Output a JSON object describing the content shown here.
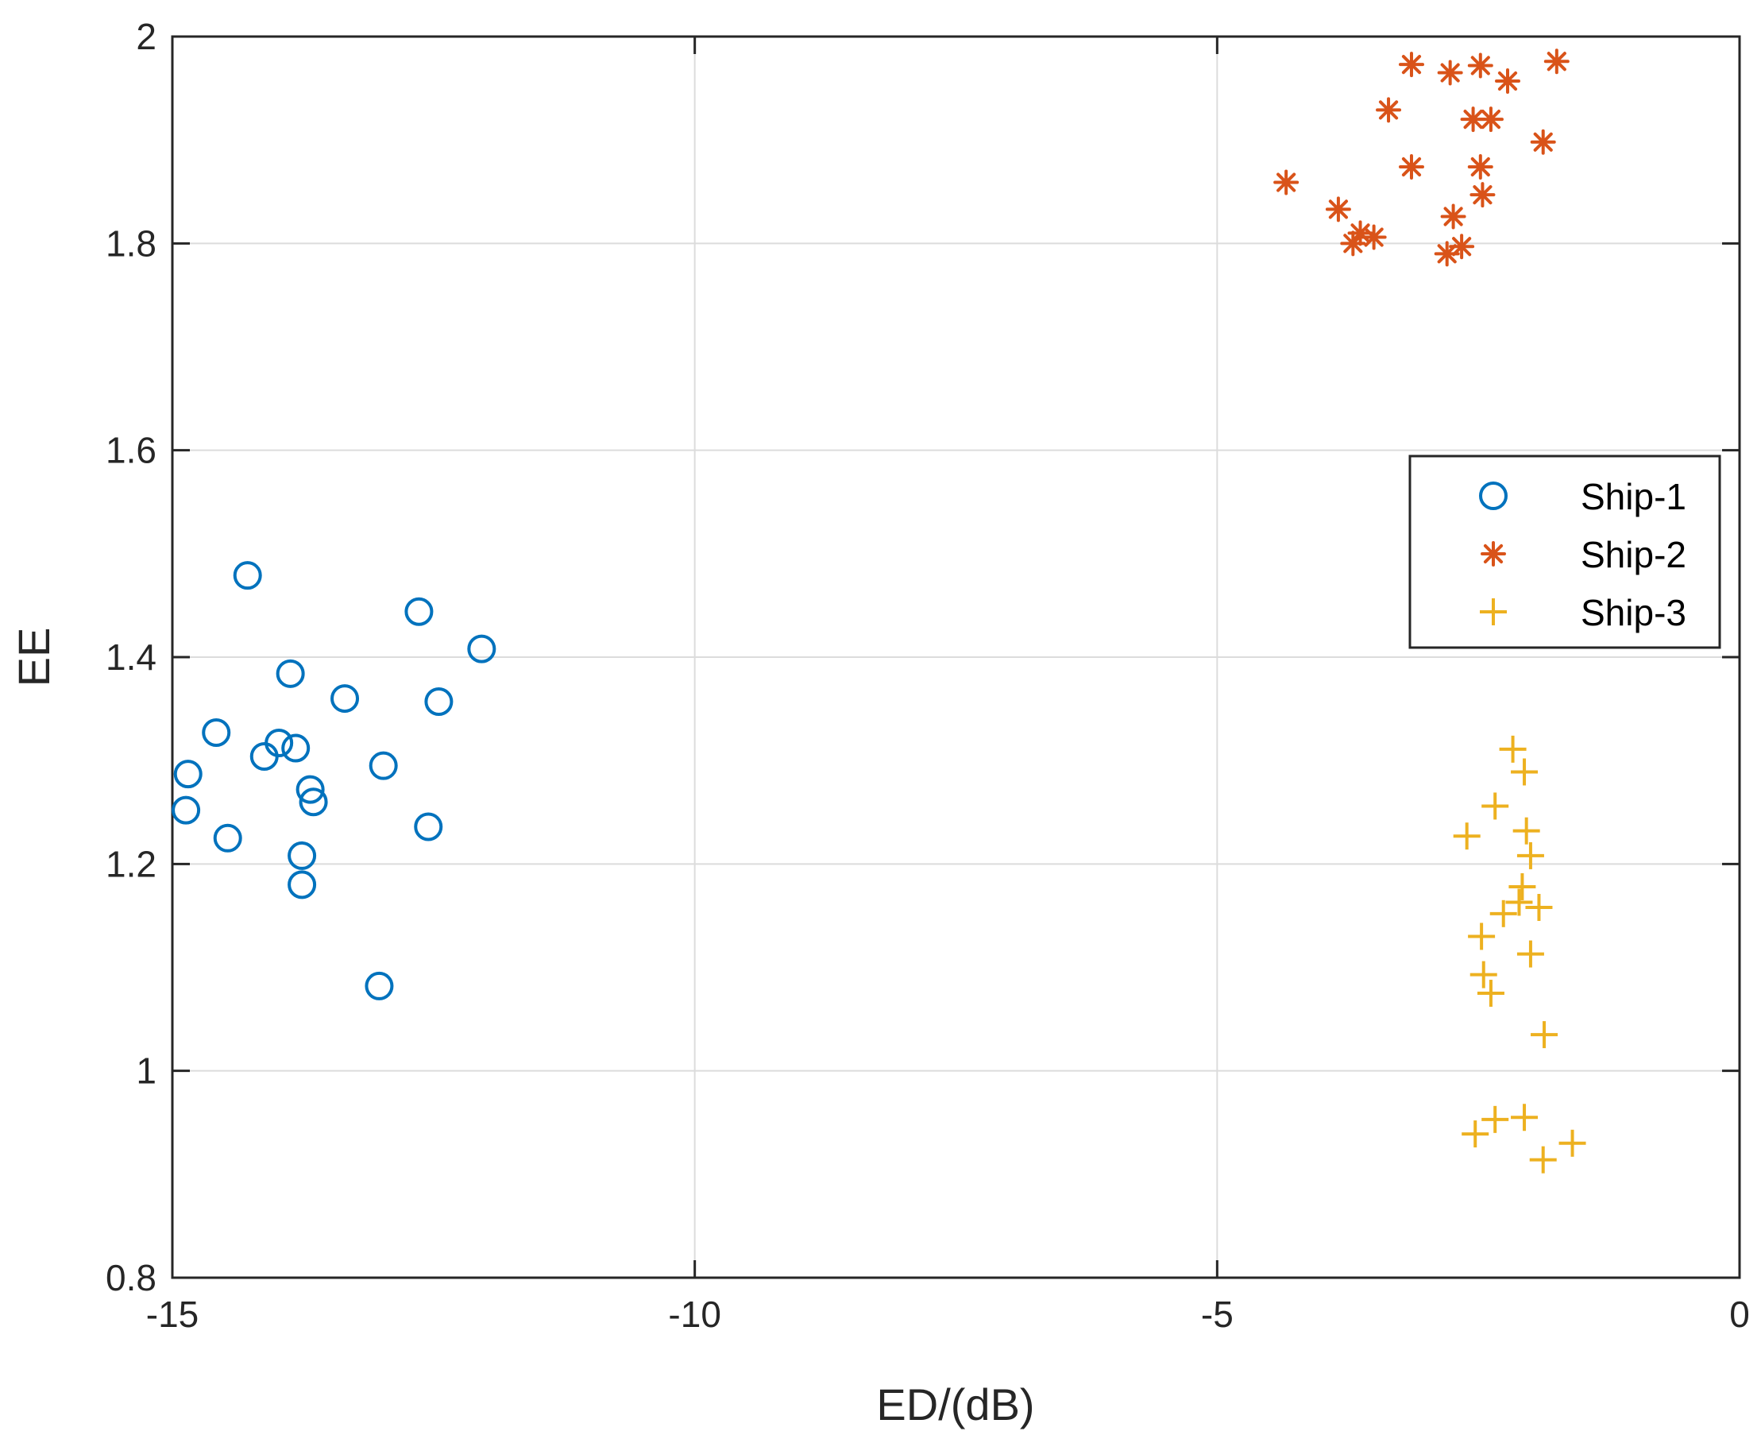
{
  "chart_data": {
    "type": "scatter",
    "title": "",
    "xlabel": "ED/(dB)",
    "ylabel": "EE",
    "xlim": [
      -15,
      0
    ],
    "ylim": [
      0.8,
      2
    ],
    "xticks": [
      -15,
      -10,
      -5,
      0
    ],
    "yticks": [
      0.8,
      1,
      1.2,
      1.4,
      1.6,
      1.8,
      2
    ],
    "xtick_labels": [
      "-15",
      "-10",
      "-5",
      "0"
    ],
    "ytick_labels": [
      "0.8",
      "1",
      "1.2",
      "1.4",
      "1.6",
      "1.8",
      "2"
    ],
    "grid": true,
    "legend_position": "right",
    "series": [
      {
        "name": "Ship-1",
        "marker": "circle",
        "color": "#0072BD",
        "points": [
          [
            -14.28,
            1.479
          ],
          [
            -12.64,
            1.444
          ],
          [
            -12.04,
            1.408
          ],
          [
            -13.87,
            1.384
          ],
          [
            -13.35,
            1.36
          ],
          [
            -12.45,
            1.357
          ],
          [
            -14.58,
            1.327
          ],
          [
            -13.98,
            1.317
          ],
          [
            -13.82,
            1.312
          ],
          [
            -14.12,
            1.304
          ],
          [
            -12.98,
            1.295
          ],
          [
            -14.85,
            1.287
          ],
          [
            -13.68,
            1.272
          ],
          [
            -13.65,
            1.26
          ],
          [
            -14.87,
            1.252
          ],
          [
            -12.55,
            1.236
          ],
          [
            -14.47,
            1.225
          ],
          [
            -13.76,
            1.208
          ],
          [
            -13.76,
            1.18
          ],
          [
            -13.02,
            1.082
          ]
        ]
      },
      {
        "name": "Ship-2",
        "marker": "asterisk",
        "color": "#D95319",
        "points": [
          [
            -1.75,
            1.976
          ],
          [
            -3.14,
            1.973
          ],
          [
            -2.48,
            1.972
          ],
          [
            -2.77,
            1.965
          ],
          [
            -2.22,
            1.957
          ],
          [
            -3.36,
            1.929
          ],
          [
            -2.55,
            1.92
          ],
          [
            -2.38,
            1.92
          ],
          [
            -1.88,
            1.898
          ],
          [
            -3.14,
            1.874
          ],
          [
            -2.48,
            1.874
          ],
          [
            -4.34,
            1.859
          ],
          [
            -2.46,
            1.847
          ],
          [
            -3.84,
            1.833
          ],
          [
            -2.74,
            1.826
          ],
          [
            -3.63,
            1.81
          ],
          [
            -3.5,
            1.806
          ],
          [
            -3.7,
            1.8
          ],
          [
            -2.66,
            1.797
          ],
          [
            -2.8,
            1.79
          ]
        ]
      },
      {
        "name": "Ship-3",
        "marker": "plus",
        "color": "#EDB120",
        "points": [
          [
            -2.17,
            1.311
          ],
          [
            -2.06,
            1.289
          ],
          [
            -2.34,
            1.256
          ],
          [
            -2.61,
            1.227
          ],
          [
            -2.04,
            1.232
          ],
          [
            -2.0,
            1.208
          ],
          [
            -2.08,
            1.178
          ],
          [
            -2.11,
            1.163
          ],
          [
            -1.92,
            1.158
          ],
          [
            -2.26,
            1.152
          ],
          [
            -2.47,
            1.13
          ],
          [
            -2.0,
            1.113
          ],
          [
            -2.45,
            1.093
          ],
          [
            -2.38,
            1.075
          ],
          [
            -1.87,
            1.035
          ],
          [
            -2.06,
            0.955
          ],
          [
            -2.34,
            0.953
          ],
          [
            -2.53,
            0.939
          ],
          [
            -1.6,
            0.93
          ],
          [
            -1.88,
            0.914
          ]
        ]
      }
    ]
  }
}
